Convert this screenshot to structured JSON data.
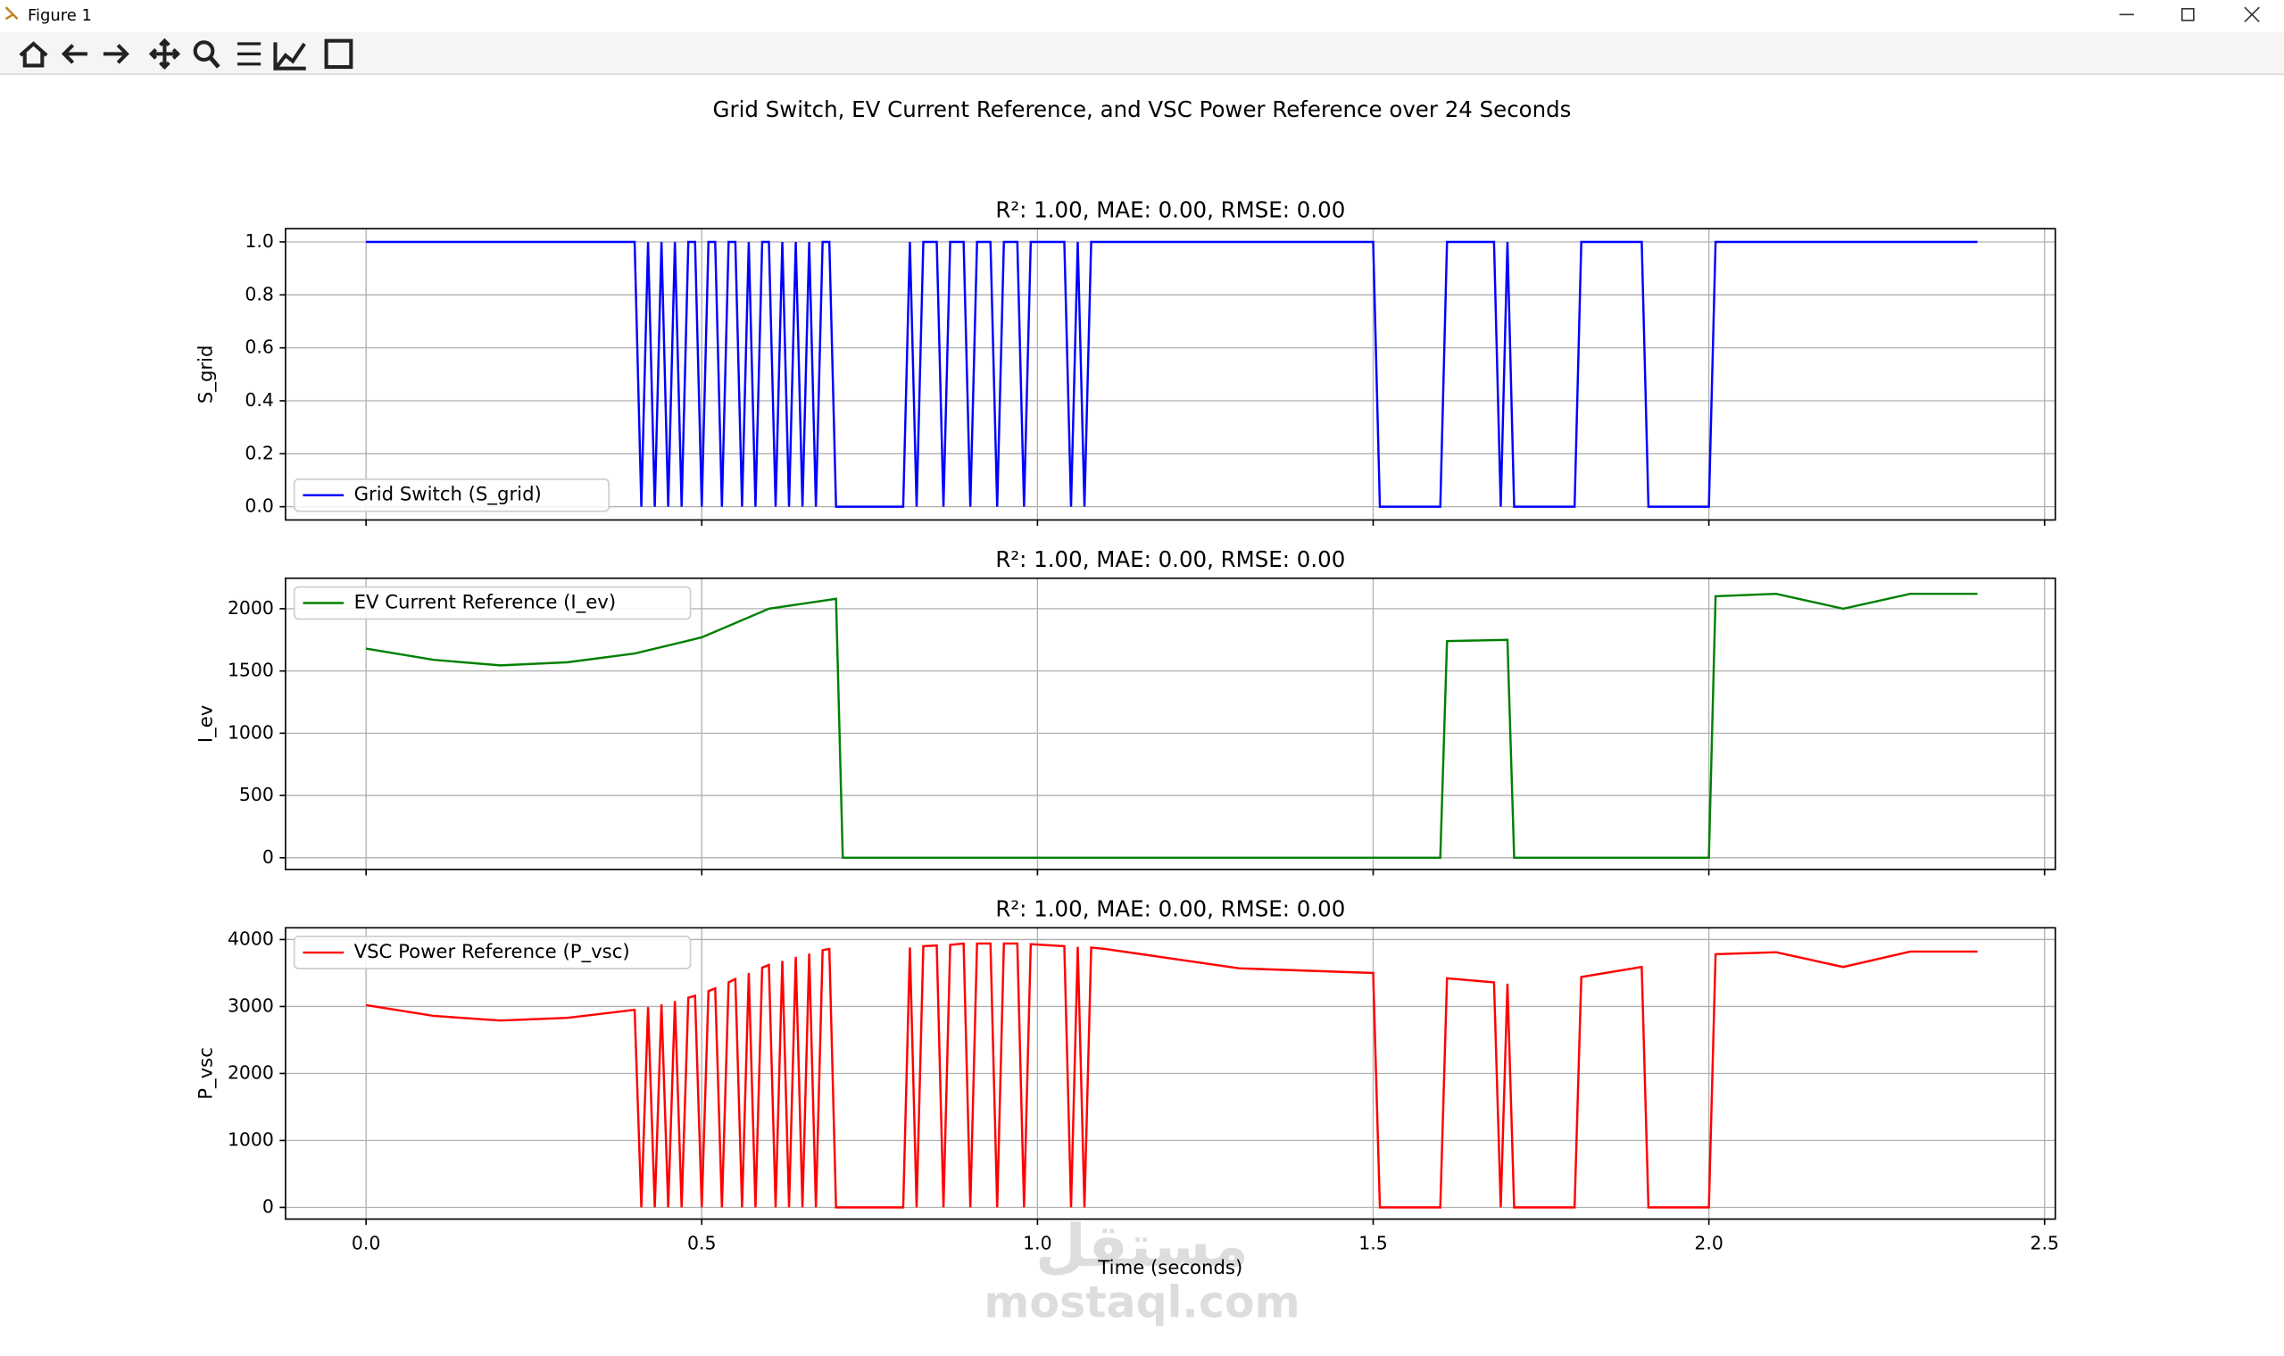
{
  "window_title": "Figure 1",
  "suptitle": "Grid Switch, EV Current Reference, and VSC Power Reference over 24 Seconds",
  "watermark": "mostaql.com",
  "watermark_arabic": "مستقل",
  "chart_data": [
    {
      "type": "line",
      "title": "R²: 1.00, MAE: 0.00, RMSE: 0.00",
      "ylabel": "S_grid",
      "xlim": [
        -0.12,
        2.516
      ],
      "ylim": [
        -0.05,
        1.05
      ],
      "xticks": [
        {
          "value": 0,
          "label": "0.0"
        },
        0.5,
        {
          "value": 1,
          "label": "1.0"
        },
        1.5,
        {
          "value": 2,
          "label": "2.0"
        },
        2.5
      ],
      "yticks": [
        {
          "value": 0,
          "label": "0.0"
        },
        0.2,
        0.4,
        0.6,
        0.8,
        {
          "value": 1,
          "label": "1.0"
        }
      ],
      "grid": true,
      "legend": "lower left",
      "series": [
        {
          "name": "Grid Switch (S_grid)",
          "color": "#0000ff",
          "x": [
            0,
            0.4,
            0.41,
            0.42,
            0.43,
            0.44,
            0.45,
            0.46,
            0.47,
            0.48,
            0.49,
            0.5,
            0.51,
            0.52,
            0.53,
            0.54,
            0.55,
            0.56,
            0.57,
            0.58,
            0.59,
            0.6,
            0.61,
            0.62,
            0.63,
            0.64,
            0.65,
            0.66,
            0.67,
            0.68,
            0.69,
            0.7,
            0.8,
            0.81,
            0.82,
            0.83,
            0.85,
            0.86,
            0.87,
            0.89,
            0.9,
            0.91,
            0.93,
            0.94,
            0.95,
            0.97,
            0.98,
            0.99,
            1.04,
            1.05,
            1.06,
            1.07,
            1.08,
            1.5,
            1.51,
            1.6,
            1.61,
            1.68,
            1.69,
            1.7,
            1.71,
            1.8,
            1.81,
            1.9,
            1.91,
            2.0,
            2.01,
            2.4
          ],
          "values": [
            1,
            1,
            0,
            1,
            0,
            1,
            0,
            1,
            0,
            1,
            1,
            0,
            1,
            1,
            0,
            1,
            1,
            0,
            1,
            0,
            1,
            1,
            0,
            1,
            0,
            1,
            0,
            1,
            0,
            1,
            1,
            0,
            0,
            1,
            0,
            1,
            1,
            0,
            1,
            1,
            0,
            1,
            1,
            0,
            1,
            1,
            0,
            1,
            1,
            0,
            1,
            0,
            1,
            1,
            0,
            0,
            1,
            1,
            0,
            1,
            0,
            0,
            1,
            1,
            0,
            0,
            1,
            1
          ]
        }
      ]
    },
    {
      "type": "line",
      "title": "R²: 1.00, MAE: 0.00, RMSE: 0.00",
      "ylabel": "I_ev",
      "xlim": [
        -0.12,
        2.516
      ],
      "ylim": [
        -95,
        2245
      ],
      "xticks": [
        {
          "value": 0,
          "label": "0.0"
        },
        0.5,
        {
          "value": 1,
          "label": "1.0"
        },
        1.5,
        {
          "value": 2,
          "label": "2.0"
        },
        2.5
      ],
      "yticks": [
        0,
        500,
        1000,
        1500,
        2000
      ],
      "grid": true,
      "legend": "upper left",
      "series": [
        {
          "name": "EV Current Reference (I_ev)",
          "color": "#008000",
          "x": [
            0,
            0.1,
            0.2,
            0.3,
            0.4,
            0.5,
            0.6,
            0.7,
            0.71,
            1.6,
            1.61,
            1.7,
            1.71,
            2.0,
            2.01,
            2.1,
            2.2,
            2.3,
            2.4
          ],
          "values": [
            1680,
            1590,
            1545,
            1570,
            1640,
            1770,
            2000,
            2080,
            0,
            0,
            1740,
            1750,
            0,
            0,
            2100,
            2120,
            2000,
            2120,
            2120
          ]
        }
      ]
    },
    {
      "type": "line",
      "title": "R²: 1.00, MAE: 0.00, RMSE: 0.00",
      "ylabel": "P_vsc",
      "xlabel": "Time (seconds)",
      "xlim": [
        -0.12,
        2.516
      ],
      "ylim": [
        -175,
        4175
      ],
      "xticks": [
        {
          "value": 0,
          "label": "0.0"
        },
        0.5,
        {
          "value": 1,
          "label": "1.0"
        },
        1.5,
        {
          "value": 2,
          "label": "2.0"
        },
        2.5
      ],
      "yticks": [
        0,
        1000,
        2000,
        3000,
        4000
      ],
      "grid": true,
      "legend": "upper left",
      "series": [
        {
          "name": "VSC Power Reference (P_vsc)",
          "color": "#ff0000",
          "x": [
            0,
            0.1,
            0.2,
            0.3,
            0.4,
            0.41,
            0.42,
            0.43,
            0.44,
            0.45,
            0.46,
            0.47,
            0.48,
            0.49,
            0.5,
            0.51,
            0.52,
            0.53,
            0.54,
            0.55,
            0.56,
            0.57,
            0.58,
            0.59,
            0.6,
            0.61,
            0.62,
            0.63,
            0.64,
            0.65,
            0.66,
            0.67,
            0.68,
            0.69,
            0.7,
            0.8,
            0.81,
            0.82,
            0.83,
            0.85,
            0.86,
            0.87,
            0.89,
            0.9,
            0.91,
            0.93,
            0.94,
            0.95,
            0.97,
            0.98,
            0.99,
            1.04,
            1.05,
            1.06,
            1.07,
            1.08,
            1.1,
            1.3,
            1.5,
            1.51,
            1.6,
            1.61,
            1.68,
            1.69,
            1.7,
            1.71,
            1.8,
            1.81,
            1.9,
            1.91,
            2.0,
            2.01,
            2.1,
            2.2,
            2.3,
            2.4
          ],
          "values": [
            3020,
            2860,
            2790,
            2830,
            2950,
            0,
            2990,
            0,
            3030,
            0,
            3080,
            0,
            3130,
            3160,
            0,
            3230,
            3270,
            0,
            3360,
            3410,
            0,
            3500,
            0,
            3580,
            3620,
            0,
            3680,
            0,
            3740,
            0,
            3790,
            0,
            3840,
            3860,
            0,
            0,
            3880,
            0,
            3900,
            3910,
            0,
            3920,
            3940,
            0,
            3940,
            3940,
            0,
            3940,
            3940,
            0,
            3930,
            3900,
            0,
            3890,
            0,
            3880,
            3860,
            3570,
            3500,
            0,
            0,
            3420,
            3360,
            0,
            3340,
            0,
            0,
            3440,
            3590,
            0,
            0,
            3780,
            3810,
            3590,
            3820,
            3820
          ]
        }
      ]
    }
  ]
}
